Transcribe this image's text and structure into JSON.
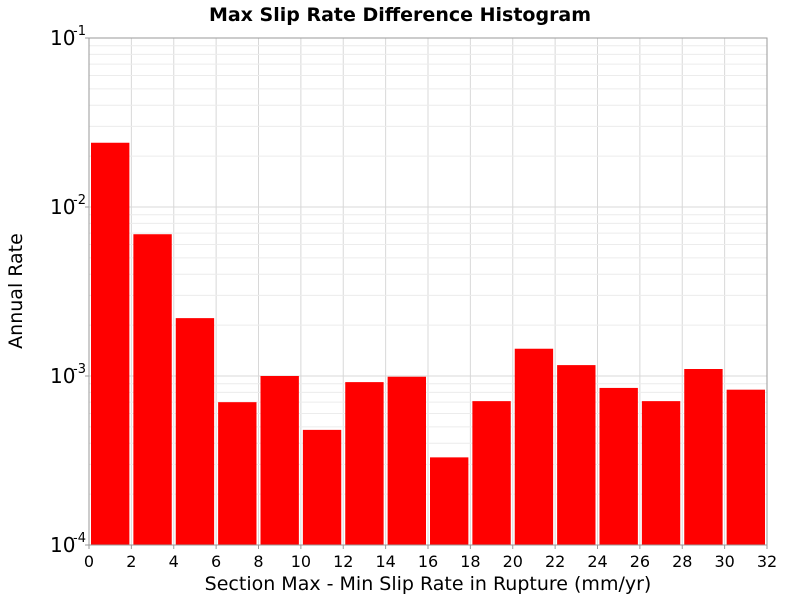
{
  "chart_data": {
    "type": "bar",
    "title": "Max Slip Rate Difference Histogram",
    "xlabel": "Section Max - Min Slip Rate in Rupture (mm/yr)",
    "ylabel": "Annual Rate",
    "yscale": "log",
    "xlim": [
      0,
      32
    ],
    "ylim": [
      0.0001,
      0.1
    ],
    "bin_width": 2,
    "x_ticks": [
      "0",
      "2",
      "4",
      "6",
      "8",
      "10",
      "12",
      "14",
      "16",
      "18",
      "20",
      "22",
      "24",
      "26",
      "28",
      "30",
      "32"
    ],
    "y_ticks": [
      {
        "base": "10",
        "exp": "-4",
        "value": 0.0001
      },
      {
        "base": "10",
        "exp": "-3",
        "value": 0.001
      },
      {
        "base": "10",
        "exp": "-2",
        "value": 0.01
      },
      {
        "base": "10",
        "exp": "-1",
        "value": 0.1
      }
    ],
    "bins": [
      0,
      2,
      4,
      6,
      8,
      10,
      12,
      14,
      16,
      18,
      20,
      22,
      24,
      26,
      28,
      30
    ],
    "values": [
      0.024,
      0.0069,
      0.0022,
      0.0007,
      0.001,
      0.00048,
      0.00092,
      0.00099,
      0.00033,
      0.00071,
      0.00145,
      0.00116,
      0.00085,
      0.00071,
      0.0011,
      0.00083
    ],
    "bar_color": "#ff0000",
    "grid": true
  }
}
